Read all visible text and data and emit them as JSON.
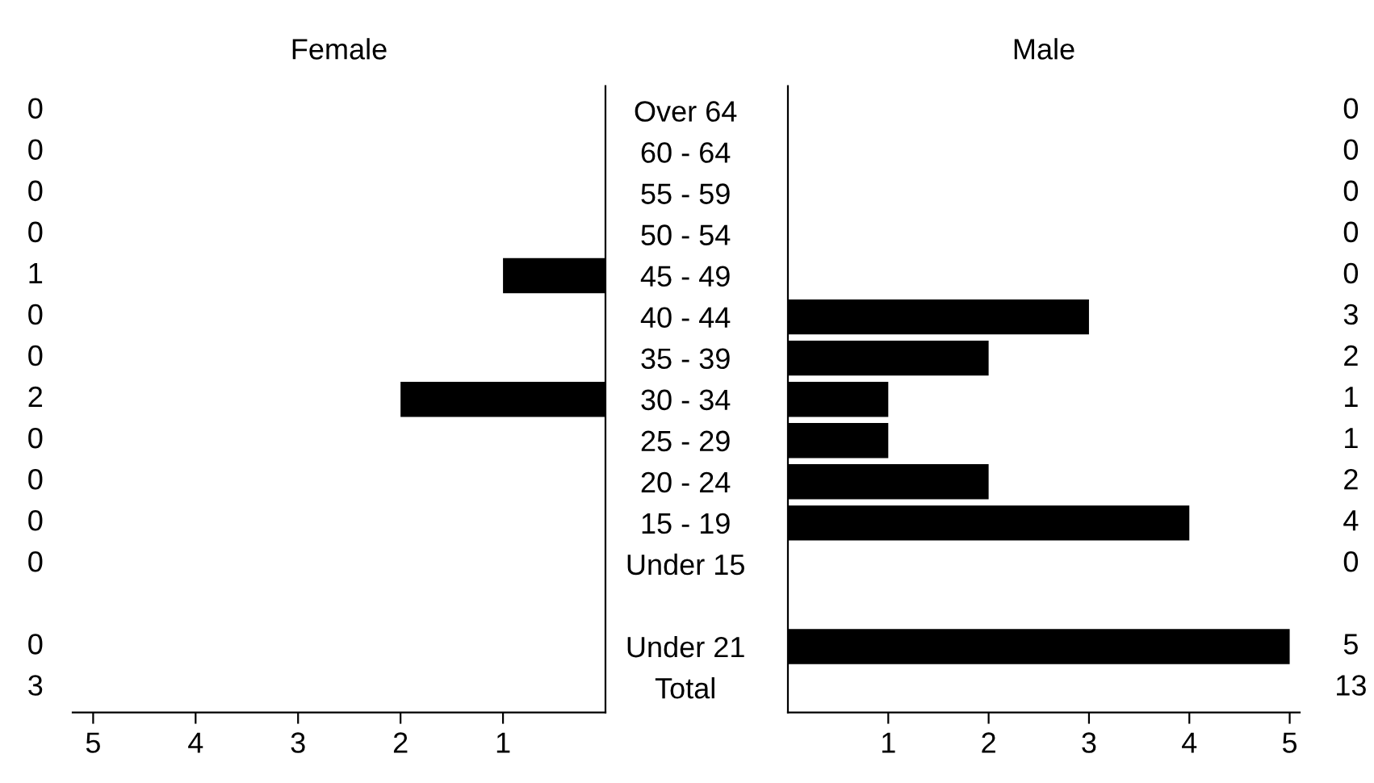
{
  "chart_data": [
    {
      "type": "bar",
      "orientation": "horizontal",
      "title": "Female",
      "tick_labels": "x",
      "categories": [
        null,
        null,
        null,
        null,
        null,
        null,
        null,
        null,
        null,
        null,
        null,
        null,
        null,
        null,
        null
      ],
      "values": [
        0,
        0,
        0,
        0,
        1,
        0,
        0,
        2,
        0,
        0,
        0,
        0,
        null,
        0,
        null
      ],
      "value_labels": [
        "0",
        "0",
        "0",
        "0",
        "1",
        "0",
        "0",
        "2",
        "0",
        "0",
        "0",
        "0",
        null,
        "0",
        "3"
      ],
      "color": "#000000",
      "xlim": [
        5.2,
        0
      ],
      "xticks": [
        5,
        4,
        3,
        2,
        1
      ],
      "grid": false,
      "legend": false
    },
    {
      "type": "bar",
      "orientation": "horizontal",
      "title": "Male",
      "categories": [
        "Over 64",
        "60 - 64",
        "55 - 59",
        "50 - 54",
        "45 - 49",
        "40 - 44",
        "35 - 39",
        "30 - 34",
        "25 - 29",
        "20 - 24",
        "15 - 19",
        "Under 15",
        null,
        "Under 21",
        "Total"
      ],
      "values": [
        0,
        0,
        0,
        0,
        0,
        3,
        2,
        1,
        1,
        2,
        4,
        0,
        null,
        5,
        null
      ],
      "value_labels": [
        "0",
        "0",
        "0",
        "0",
        "0",
        "3",
        "2",
        "1",
        "1",
        "2",
        "4",
        "0",
        null,
        "5",
        "13"
      ],
      "color": "#000000",
      "xlim": [
        0,
        5.1
      ],
      "xticks": [
        1,
        2,
        3,
        4,
        5
      ],
      "grid": false,
      "legend": false
    }
  ]
}
